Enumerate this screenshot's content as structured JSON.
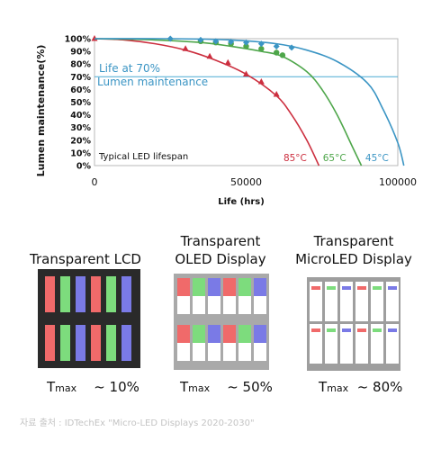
{
  "chart_data": {
    "type": "line",
    "ylabel": "Lumen maintenance(%)",
    "xlabel": "Life (hrs)",
    "xlim": [
      0,
      100000
    ],
    "ylim": [
      0,
      100
    ],
    "x_ticks": [
      "0",
      "50000",
      "100000"
    ],
    "y_ticks": [
      "0%",
      "10%",
      "20%",
      "30%",
      "40%",
      "50%",
      "60%",
      "70%",
      "80%",
      "90%",
      "100%"
    ],
    "grid": false,
    "threshold": {
      "value": 70,
      "label_line1": "Life at 70%",
      "label_line2": "Lumen maintenance",
      "color": "#4aaad2"
    },
    "note": "Typical LED lifespan",
    "series": [
      {
        "name": "85°C",
        "color": "#cc2f3f",
        "curve": [
          [
            0,
            100
          ],
          [
            10000,
            99
          ],
          [
            20000,
            96
          ],
          [
            30000,
            91
          ],
          [
            40000,
            83
          ],
          [
            50000,
            72
          ],
          [
            60000,
            55
          ],
          [
            65000,
            40
          ],
          [
            70000,
            20
          ],
          [
            74000,
            0
          ]
        ],
        "markers": [
          [
            0,
            100
          ],
          [
            30000,
            92
          ],
          [
            38000,
            86
          ],
          [
            44000,
            81
          ],
          [
            50000,
            72
          ],
          [
            55000,
            66
          ],
          [
            60000,
            56
          ]
        ]
      },
      {
        "name": "65°C",
        "color": "#4ea64a",
        "curve": [
          [
            0,
            100
          ],
          [
            20000,
            99
          ],
          [
            35000,
            97
          ],
          [
            45000,
            94
          ],
          [
            55000,
            90
          ],
          [
            62000,
            86
          ],
          [
            70000,
            74
          ],
          [
            75000,
            60
          ],
          [
            80000,
            40
          ],
          [
            85000,
            15
          ],
          [
            88000,
            0
          ]
        ],
        "markers": [
          [
            35000,
            98
          ],
          [
            40000,
            97
          ],
          [
            45000,
            96
          ],
          [
            50000,
            94
          ],
          [
            55000,
            92
          ],
          [
            60000,
            89
          ],
          [
            62000,
            87
          ]
        ]
      },
      {
        "name": "45°C",
        "color": "#3b95c4",
        "curve": [
          [
            0,
            100
          ],
          [
            25000,
            100
          ],
          [
            45000,
            99
          ],
          [
            60000,
            96
          ],
          [
            70000,
            91
          ],
          [
            80000,
            82
          ],
          [
            90000,
            65
          ],
          [
            95000,
            45
          ],
          [
            100000,
            18
          ],
          [
            102000,
            0
          ]
        ],
        "markers": [
          [
            25000,
            100
          ],
          [
            35000,
            99
          ],
          [
            40000,
            98
          ],
          [
            45000,
            97.5
          ],
          [
            50000,
            97
          ],
          [
            55000,
            96
          ],
          [
            60000,
            94
          ],
          [
            65000,
            93
          ]
        ]
      }
    ]
  },
  "panels": [
    {
      "title_line1": "Transparent LCD",
      "title_line2": "",
      "tmax": "T",
      "tmax_sub": "max",
      "tmax_value": "~ 10%"
    },
    {
      "title_line1": "Transparent",
      "title_line2": "OLED Display",
      "tmax": "T",
      "tmax_sub": "max",
      "tmax_value": "~ 50%"
    },
    {
      "title_line1": "Transparent",
      "title_line2": "MicroLED Display",
      "tmax": "T",
      "tmax_sub": "max",
      "tmax_value": "~ 80%"
    }
  ],
  "colors": {
    "red": "#f06a6a",
    "green": "#7ddc7d",
    "blue": "#7a7ae6",
    "cell_bg": "#2a2a2a"
  },
  "source": "자료 출처 : IDTechEx \"Micro-LED Displays 2020-2030\""
}
